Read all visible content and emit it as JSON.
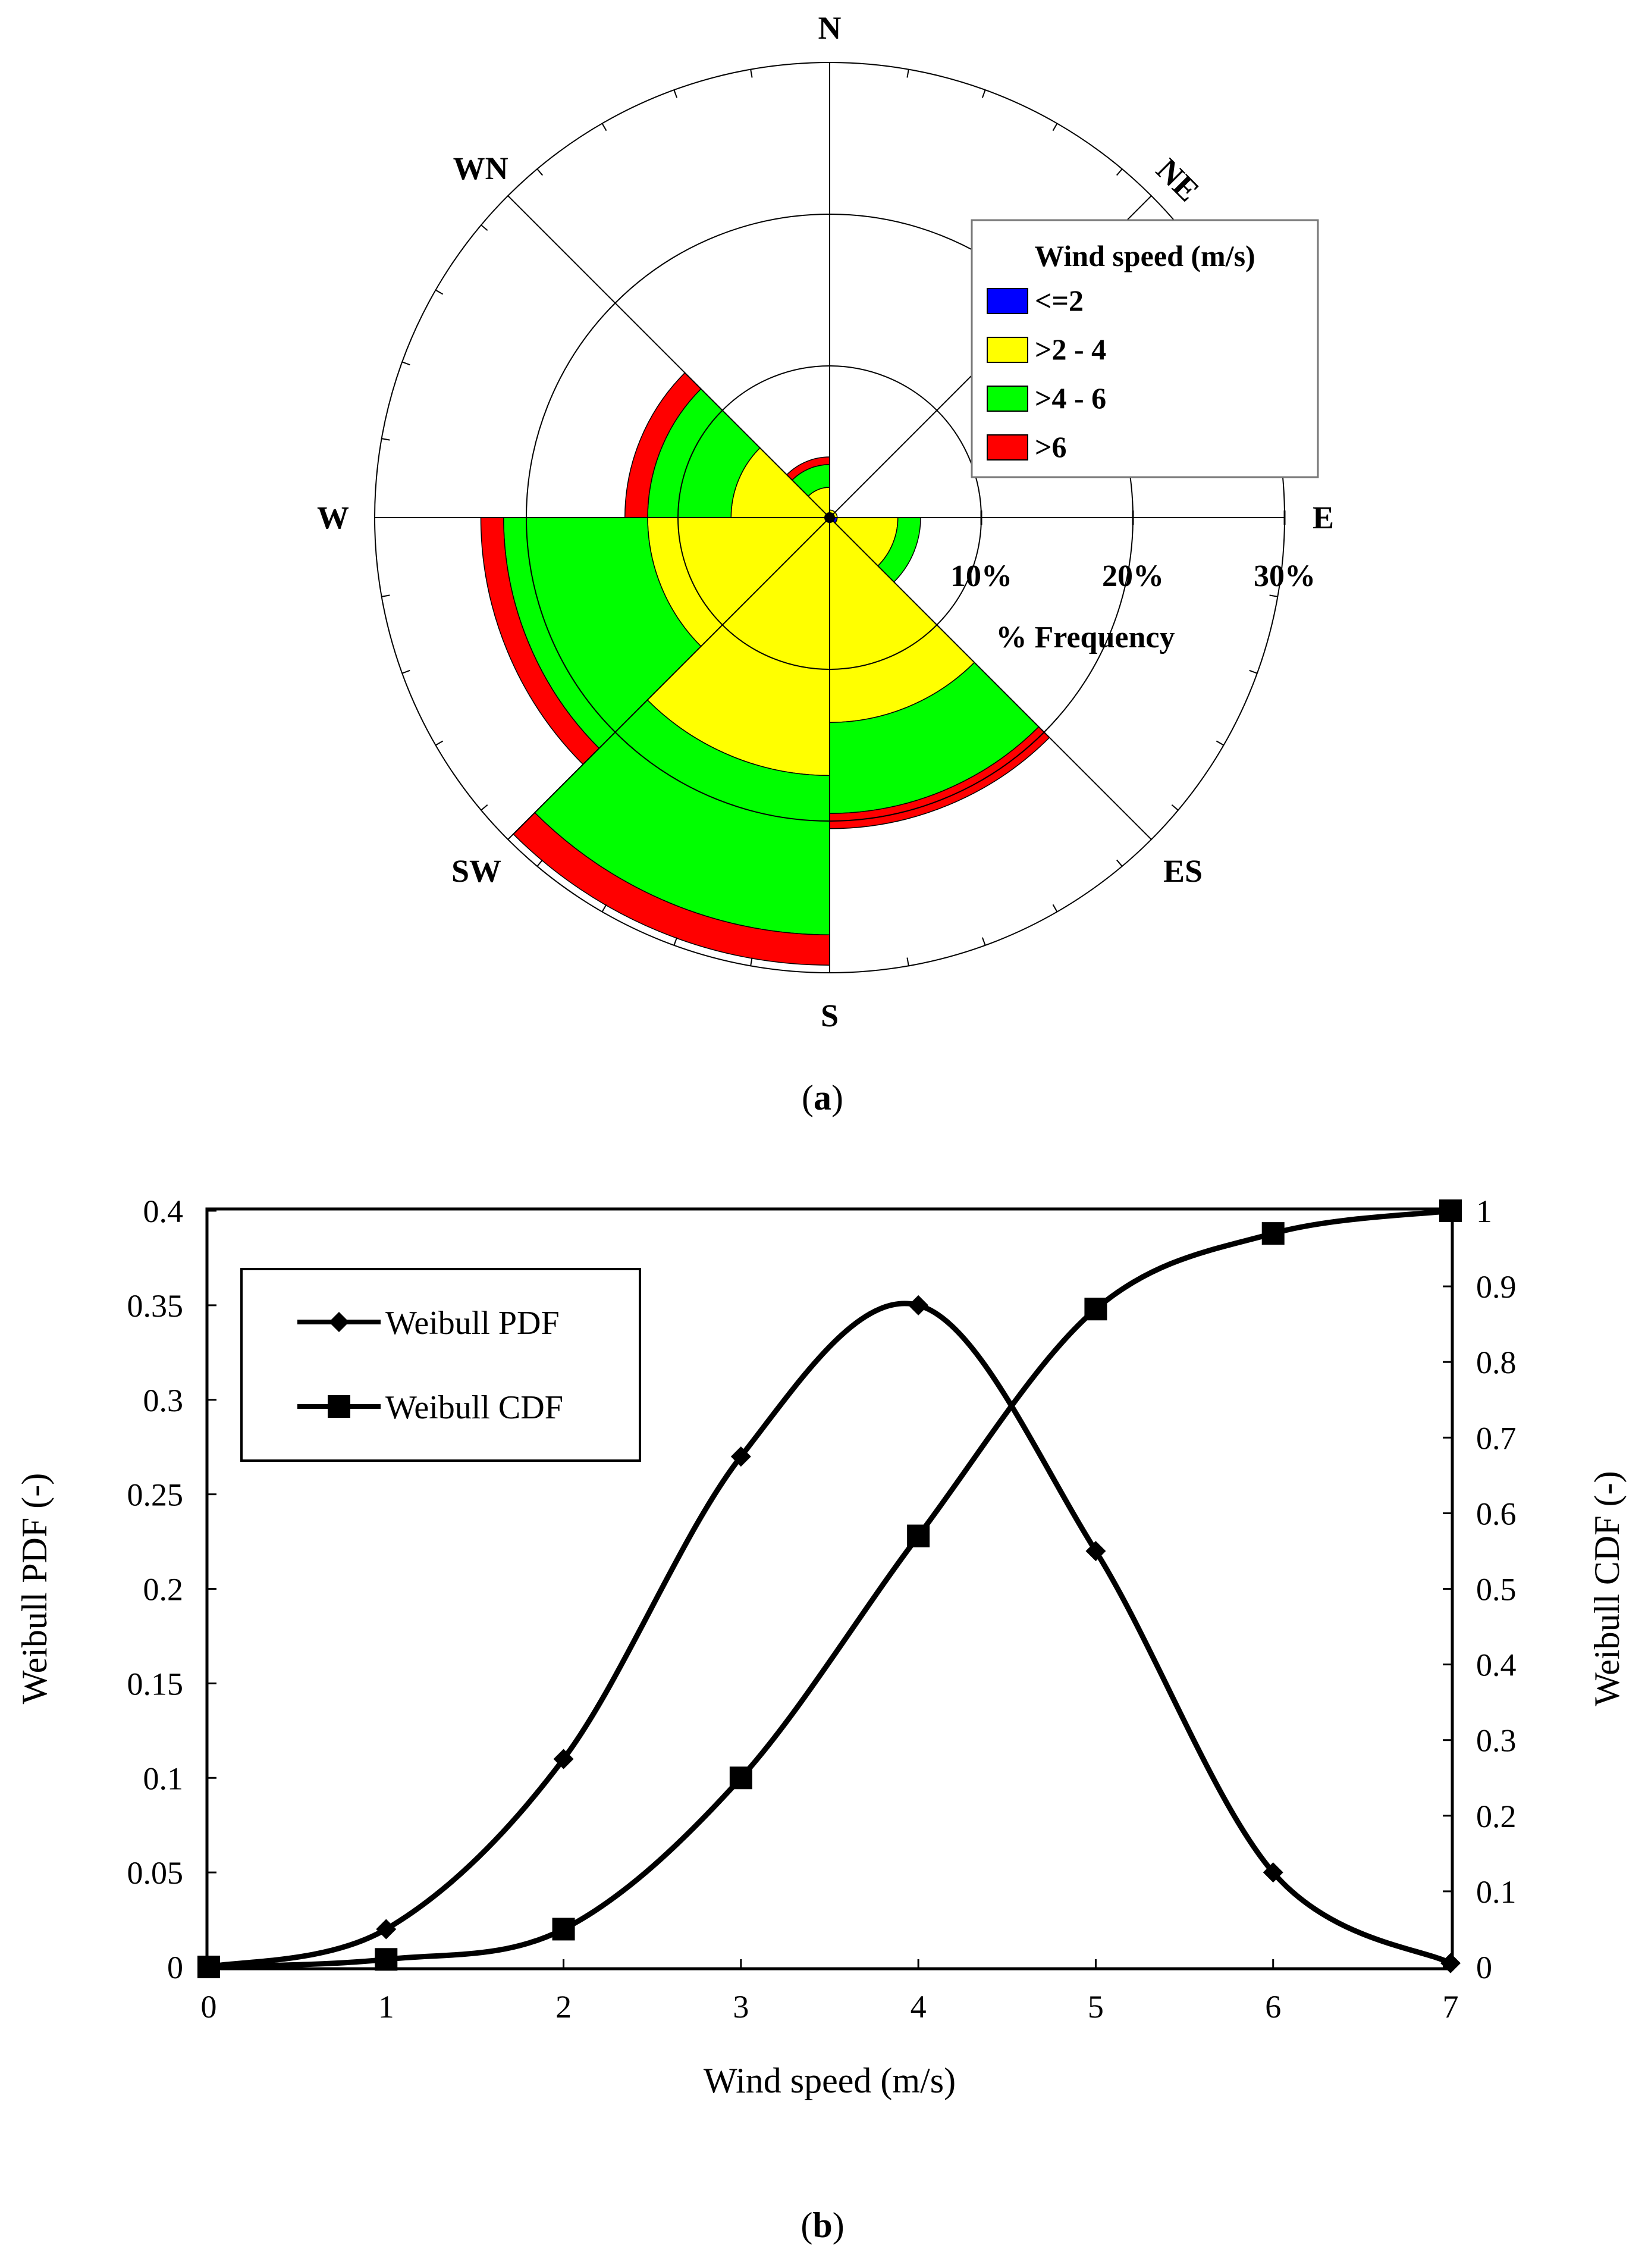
{
  "panel_a": {
    "caption": "(a)",
    "caption_letter": "a"
  },
  "panel_b": {
    "caption": "(b)",
    "caption_letter": "b"
  },
  "colors": {
    "calm": "#0000ff",
    "low": "#ffff00",
    "mid": "#00ff00",
    "high": "#ff0000",
    "line": "#000000"
  },
  "chart_data": [
    {
      "type": "wind-rose",
      "legend": {
        "title": "Wind speed (m/s)",
        "entries": [
          "<=2",
          ">2 - 4",
          ">4 - 6",
          ">6"
        ],
        "placement": "top-right"
      },
      "directions": [
        "N",
        "NE",
        "E",
        "ES",
        "S",
        "SW",
        "W",
        "WN"
      ],
      "radial_ticks": [
        "10%",
        "20%",
        "30%"
      ],
      "radial_max": 30,
      "radial_label": "% Frequency",
      "sectors": [
        {
          "direction": "E",
          "center_deg": 112.5,
          "cumulative": [
            0.5,
            4.5,
            6.0,
            6.0
          ]
        },
        {
          "direction": "ES",
          "center_deg": 157.5,
          "cumulative": [
            0.0,
            13.5,
            19.5,
            20.5
          ]
        },
        {
          "direction": "S",
          "center_deg": 202.5,
          "cumulative": [
            0.0,
            17.0,
            27.5,
            29.5
          ]
        },
        {
          "direction": "SW",
          "center_deg": 247.5,
          "cumulative": [
            0.0,
            12.0,
            21.5,
            23.0
          ]
        },
        {
          "direction": "W",
          "center_deg": 292.5,
          "cumulative": [
            0.0,
            6.5,
            12.0,
            13.5
          ]
        },
        {
          "direction": "WN",
          "center_deg": 337.5,
          "cumulative": [
            0.0,
            2.0,
            3.5,
            4.0
          ]
        },
        {
          "direction": "N",
          "center_deg": 22.5,
          "cumulative": [
            0.0,
            0.5,
            0.5,
            0.5
          ]
        },
        {
          "direction": "NE",
          "center_deg": 67.5,
          "cumulative": [
            0.0,
            0.5,
            0.5,
            0.5
          ]
        }
      ]
    },
    {
      "type": "line",
      "x": [
        0,
        1,
        2,
        3,
        4,
        5,
        6,
        7
      ],
      "series": [
        {
          "name": "Weibull PDF",
          "axis": "left",
          "marker": "diamond",
          "values": [
            0,
            0.02,
            0.11,
            0.27,
            0.35,
            0.22,
            0.05,
            0.002
          ]
        },
        {
          "name": "Weibull CDF",
          "axis": "right",
          "marker": "square",
          "values": [
            0,
            0.01,
            0.05,
            0.25,
            0.57,
            0.87,
            0.97,
            1.0
          ]
        }
      ],
      "xlabel": "Wind speed (m/s)",
      "ylabel": "Weibull PDF (-)",
      "y2label": "Weibull CDF (-)",
      "xlim": [
        0,
        7
      ],
      "ylim": [
        0,
        0.4
      ],
      "y2lim": [
        0,
        1
      ],
      "xticks": [
        "0",
        "1",
        "2",
        "3",
        "4",
        "5",
        "6",
        "7"
      ],
      "yticks": [
        "0",
        "0.05",
        "0.1",
        "0.15",
        "0.2",
        "0.25",
        "0.3",
        "0.35",
        "0.4"
      ],
      "y2ticks": [
        "0",
        "0.1",
        "0.2",
        "0.3",
        "0.4",
        "0.5",
        "0.6",
        "0.7",
        "0.8",
        "0.9",
        "1"
      ],
      "grid": false,
      "legend_placement": "top-left"
    }
  ]
}
